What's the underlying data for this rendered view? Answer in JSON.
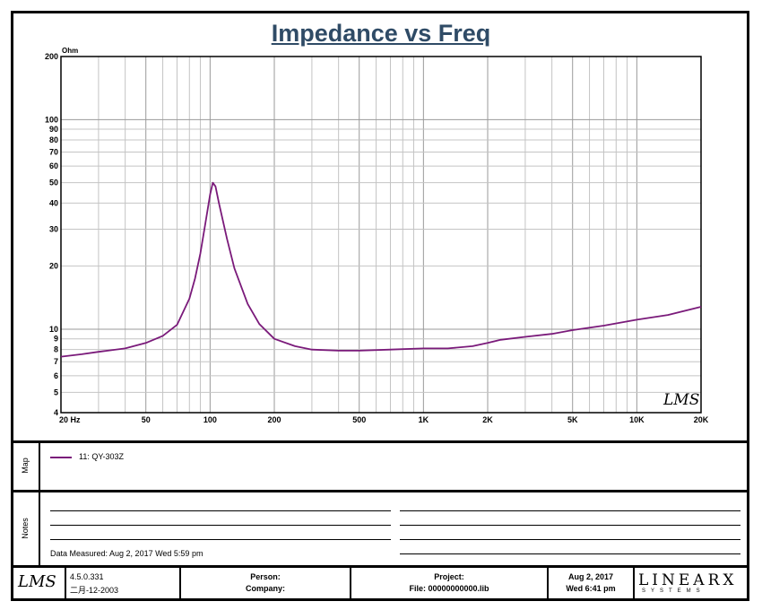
{
  "title": "Impedance vs Freq",
  "chart_data": {
    "type": "line",
    "title": "Impedance vs Freq",
    "ylabel": "Ohm",
    "xscale": "log",
    "yscale": "log",
    "xlim": [
      20,
      20000
    ],
    "ylim": [
      4,
      200
    ],
    "grid": true,
    "x_tick_labels": [
      "20 Hz",
      "50",
      "100",
      "200",
      "500",
      "1K",
      "2K",
      "5K",
      "10K",
      "20K"
    ],
    "x_tick_values": [
      20,
      50,
      100,
      200,
      500,
      1000,
      2000,
      5000,
      10000,
      20000
    ],
    "y_tick_labels": [
      "200",
      "100",
      "90",
      "80",
      "70",
      "60",
      "50",
      "40",
      "30",
      "20",
      "10",
      "9",
      "8",
      "7",
      "6",
      "5",
      "4"
    ],
    "y_tick_values": [
      200,
      100,
      90,
      80,
      70,
      60,
      50,
      40,
      30,
      20,
      10,
      9,
      8,
      7,
      6,
      5,
      4
    ],
    "series": [
      {
        "name": "11: QY-303Z",
        "color": "#7a1a7a",
        "x": [
          20,
          25,
          30,
          40,
          50,
          60,
          70,
          80,
          85,
          90,
          95,
          100,
          103,
          106,
          110,
          120,
          130,
          150,
          170,
          200,
          250,
          300,
          400,
          500,
          700,
          1000,
          1300,
          1700,
          2000,
          2300,
          3000,
          4000,
          5000,
          7000,
          10000,
          14000,
          20000
        ],
        "y": [
          7.4,
          7.6,
          7.8,
          8.1,
          8.6,
          9.3,
          10.5,
          14.0,
          17.5,
          23.0,
          32.0,
          44.0,
          50.0,
          48.0,
          40.0,
          27.0,
          19.5,
          13.2,
          10.6,
          9.0,
          8.3,
          8.0,
          7.9,
          7.9,
          8.0,
          8.1,
          8.1,
          8.3,
          8.6,
          8.9,
          9.2,
          9.5,
          9.9,
          10.4,
          11.1,
          11.7,
          12.8
        ]
      }
    ]
  },
  "logo_text": "LMS",
  "map": {
    "label": "Map",
    "legend": "11: QY-303Z"
  },
  "notes": {
    "label": "Notes",
    "measured": "Data Measured: Aug  2, 2017  Wed  5:59 pm"
  },
  "footer": {
    "logo": "LMS",
    "version": "4.5.0.331",
    "version_date": "二月-12-2003",
    "person_label": "Person:",
    "company_label": "Company:",
    "project_label": "Project:",
    "file_label": "File: 00000000000.lib",
    "date": "Aug  2, 2017",
    "time": "Wed  6:41 pm",
    "brand": "LINEARX",
    "brand_sub": "SYSTEMS"
  }
}
